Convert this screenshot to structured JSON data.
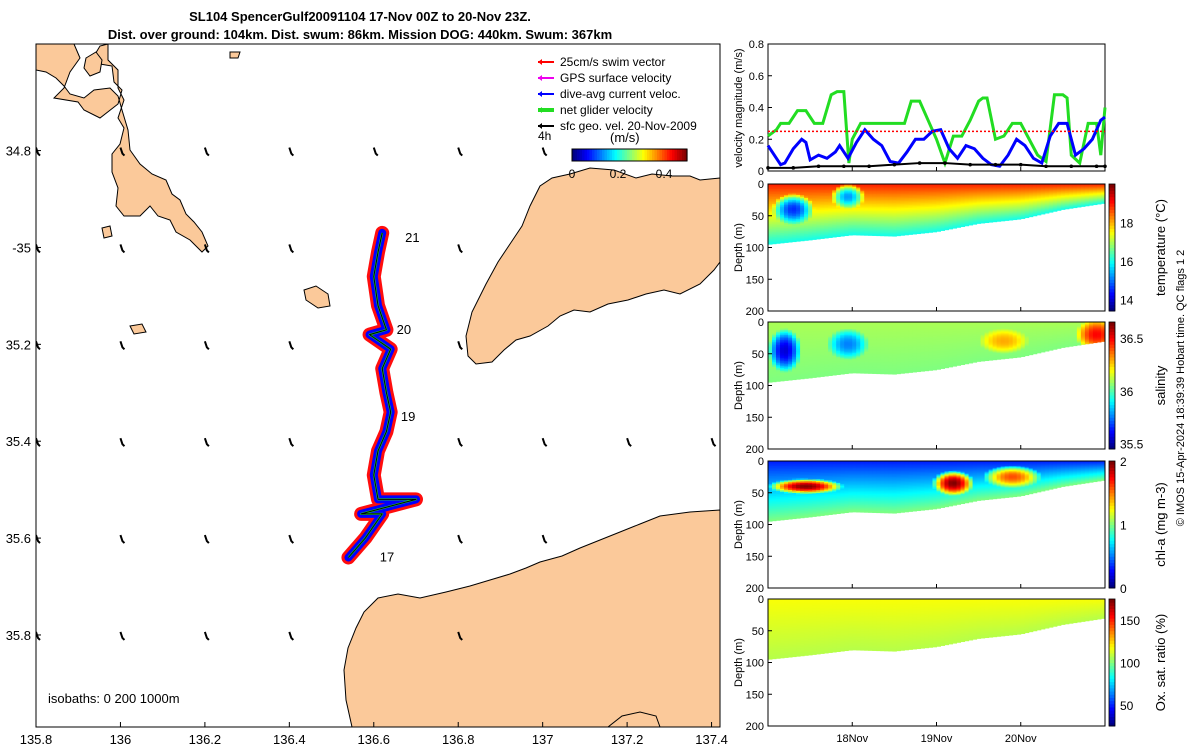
{
  "title": {
    "line1": "SL104 SpencerGulf20091104 17-Nov 00Z to 20-Nov 23Z.",
    "line2": "Dist. over ground: 104km. Dist. swum: 86km. Mission DOG: 440km. Swum: 367km"
  },
  "colors": {
    "land": "#fbc99a",
    "swim": "#ff0000",
    "gps": "#ee00ee",
    "dive": "#0000ff",
    "net": "#22dd22",
    "geo": "#000000"
  },
  "chart_data": [
    {
      "type": "map",
      "xlim": [
        135.8,
        137.42
      ],
      "ylim": [
        -35.99,
        -34.58
      ],
      "x_ticks": [
        135.8,
        136,
        136.2,
        136.4,
        136.6,
        136.8,
        137,
        137.2,
        137.4
      ],
      "x_tick_labels": [
        "135.8",
        "136",
        "136.2",
        "136.4",
        "136.6",
        "136.8",
        "137",
        "137.2",
        "137.4"
      ],
      "y_ticks": [
        -34.8,
        -35,
        -35.2,
        -35.4,
        -35.6,
        -35.8
      ],
      "y_tick_labels": [
        "34.8",
        "-35",
        "35.2",
        "35.4",
        "35.6",
        "35.8"
      ],
      "isobaths_label": "isobaths: 0   200  1000m",
      "legend": [
        {
          "label": "25cm/s swim vector",
          "color": "#ff0000"
        },
        {
          "label": "GPS surface velocity",
          "color": "#ee00ee"
        },
        {
          "label": "dive-avg current veloc.",
          "color": "#0000ff"
        },
        {
          "label": "net glider velocity",
          "color": "#22dd22"
        },
        {
          "label": "sfc geo. vel. 20-Nov-2009",
          "color": "#000000"
        }
      ],
      "legend_note": "4h",
      "colorbar": {
        "label": "(m/s)",
        "ticks": [
          0,
          0.2,
          0.4
        ],
        "tick_labels": [
          "0",
          "0.2",
          "0.4"
        ],
        "range": [
          0,
          0.5
        ]
      },
      "day_labels": [
        {
          "text": "21",
          "lon": 136.66,
          "lat": -34.98
        },
        {
          "text": "20",
          "lon": 136.64,
          "lat": -35.17
        },
        {
          "text": "19",
          "lon": 136.65,
          "lat": -35.35
        },
        {
          "text": "17",
          "lon": 136.6,
          "lat": -35.64
        }
      ],
      "track": [
        [
          136.54,
          -35.64
        ],
        [
          136.58,
          -35.6
        ],
        [
          136.62,
          -35.55
        ],
        [
          136.57,
          -35.55
        ],
        [
          136.7,
          -35.52
        ],
        [
          136.61,
          -35.52
        ],
        [
          136.6,
          -35.47
        ],
        [
          136.61,
          -35.42
        ],
        [
          136.63,
          -35.38
        ],
        [
          136.64,
          -35.34
        ],
        [
          136.63,
          -35.3
        ],
        [
          136.62,
          -35.25
        ],
        [
          136.64,
          -35.21
        ],
        [
          136.59,
          -35.18
        ],
        [
          136.63,
          -35.17
        ],
        [
          136.61,
          -35.12
        ],
        [
          136.6,
          -35.06
        ],
        [
          136.61,
          -35.01
        ],
        [
          136.62,
          -34.97
        ]
      ],
      "geo_vectors": [
        {
          "lon": 135.8,
          "lat": -34.8
        },
        {
          "lon": 136,
          "lat": -34.8
        },
        {
          "lon": 136.2,
          "lat": -34.8
        },
        {
          "lon": 136.4,
          "lat": -34.8
        },
        {
          "lon": 136.6,
          "lat": -34.8
        },
        {
          "lon": 136.8,
          "lat": -34.8
        },
        {
          "lon": 137,
          "lat": -34.8
        },
        {
          "lon": 135.8,
          "lat": -35
        },
        {
          "lon": 136,
          "lat": -35
        },
        {
          "lon": 136.2,
          "lat": -35
        },
        {
          "lon": 136.4,
          "lat": -35
        },
        {
          "lon": 136.8,
          "lat": -35
        },
        {
          "lon": 135.8,
          "lat": -35.2
        },
        {
          "lon": 136,
          "lat": -35.2
        },
        {
          "lon": 136.2,
          "lat": -35.2
        },
        {
          "lon": 136.4,
          "lat": -35.2
        },
        {
          "lon": 136.8,
          "lat": -35.2
        },
        {
          "lon": 135.8,
          "lat": -35.4
        },
        {
          "lon": 136,
          "lat": -35.4
        },
        {
          "lon": 136.2,
          "lat": -35.4
        },
        {
          "lon": 136.4,
          "lat": -35.4
        },
        {
          "lon": 136.8,
          "lat": -35.4
        },
        {
          "lon": 137,
          "lat": -35.4
        },
        {
          "lon": 137.2,
          "lat": -35.4
        },
        {
          "lon": 137.4,
          "lat": -35.4
        },
        {
          "lon": 135.8,
          "lat": -35.6
        },
        {
          "lon": 136,
          "lat": -35.6
        },
        {
          "lon": 136.2,
          "lat": -35.6
        },
        {
          "lon": 136.4,
          "lat": -35.6
        },
        {
          "lon": 136.8,
          "lat": -35.6
        },
        {
          "lon": 137,
          "lat": -35.6
        },
        {
          "lon": 135.8,
          "lat": -35.8
        },
        {
          "lon": 136,
          "lat": -35.8
        },
        {
          "lon": 136.2,
          "lat": -35.8
        },
        {
          "lon": 136.4,
          "lat": -35.8
        },
        {
          "lon": 136.8,
          "lat": -35.8
        }
      ]
    },
    {
      "type": "line",
      "ylabel": "velocity magnitude (m/s)",
      "ylim": [
        0,
        0.8
      ],
      "y_ticks": [
        0,
        0.2,
        0.4,
        0.6,
        0.8
      ],
      "y_tick_labels": [
        "0",
        "0.2",
        "0.4",
        "0.6",
        "0.8"
      ],
      "x_range_days": [
        17,
        21
      ],
      "series": [
        {
          "name": "net glider velocity",
          "color": "#22dd22",
          "x": [
            17.0,
            17.1,
            17.15,
            17.25,
            17.35,
            17.45,
            17.55,
            17.65,
            17.75,
            17.82,
            17.9,
            17.96,
            18.0,
            18.1,
            18.3,
            18.5,
            18.62,
            18.7,
            18.8,
            18.9,
            19.0,
            19.1,
            19.2,
            19.3,
            19.4,
            19.5,
            19.55,
            19.6,
            19.7,
            19.8,
            19.9,
            20.0,
            20.1,
            20.2,
            20.3,
            20.4,
            20.5,
            20.55,
            20.6,
            20.7,
            20.8,
            20.9,
            20.95,
            21.0
          ],
          "y": [
            0.22,
            0.26,
            0.3,
            0.3,
            0.38,
            0.38,
            0.3,
            0.3,
            0.48,
            0.5,
            0.5,
            0.05,
            0.2,
            0.3,
            0.3,
            0.3,
            0.3,
            0.44,
            0.44,
            0.32,
            0.2,
            0.05,
            0.22,
            0.22,
            0.32,
            0.44,
            0.46,
            0.46,
            0.2,
            0.22,
            0.3,
            0.3,
            0.2,
            0.1,
            0.06,
            0.48,
            0.48,
            0.46,
            0.1,
            0.05,
            0.3,
            0.3,
            0.1,
            0.4
          ]
        },
        {
          "name": "dive-avg current veloc.",
          "color": "#0000ff",
          "x": [
            17.0,
            17.05,
            17.15,
            17.2,
            17.3,
            17.4,
            17.45,
            17.5,
            17.6,
            17.7,
            17.8,
            17.85,
            17.95,
            18.05,
            18.15,
            18.25,
            18.35,
            18.45,
            18.55,
            18.65,
            18.75,
            18.85,
            18.95,
            19.05,
            19.15,
            19.25,
            19.35,
            19.45,
            19.55,
            19.65,
            19.75,
            19.85,
            19.95,
            20.05,
            20.15,
            20.25,
            20.35,
            20.45,
            20.55,
            20.65,
            20.75,
            20.85,
            20.95,
            21.0
          ],
          "y": [
            0.16,
            0.12,
            0.04,
            0.05,
            0.14,
            0.2,
            0.18,
            0.07,
            0.1,
            0.08,
            0.12,
            0.16,
            0.08,
            0.18,
            0.26,
            0.2,
            0.16,
            0.06,
            0.05,
            0.12,
            0.2,
            0.2,
            0.25,
            0.26,
            0.14,
            0.08,
            0.16,
            0.14,
            0.08,
            0.04,
            0.03,
            0.1,
            0.2,
            0.16,
            0.08,
            0.05,
            0.22,
            0.3,
            0.3,
            0.1,
            0.14,
            0.2,
            0.32,
            0.34
          ]
        },
        {
          "name": "25cm/s swim vector",
          "color": "#ff0000",
          "x": [
            17.0,
            21.0
          ],
          "y": [
            0.25,
            0.25
          ]
        },
        {
          "name": "sfc geo. vel.",
          "color": "#000000",
          "x": [
            17.0,
            17.3,
            17.6,
            17.9,
            18.2,
            18.5,
            18.8,
            19.1,
            19.4,
            19.7,
            20.0,
            20.3,
            20.6,
            20.9,
            21.0
          ],
          "y": [
            0.02,
            0.02,
            0.03,
            0.03,
            0.03,
            0.04,
            0.05,
            0.05,
            0.04,
            0.04,
            0.04,
            0.03,
            0.03,
            0.03,
            0.03
          ]
        }
      ]
    },
    {
      "type": "heatmap",
      "name": "temperature",
      "ylabel": "Depth (m)",
      "colorbar_label": "temperature (°C)",
      "ylim": [
        0,
        200
      ],
      "y_ticks": [
        0,
        50,
        100,
        150,
        200
      ],
      "y_tick_labels": [
        "0",
        "50",
        "100",
        "150",
        "200"
      ],
      "clim": [
        13.4,
        20
      ],
      "cbar_ticks": [
        14,
        16,
        18
      ],
      "cbar_tick_labels": [
        "14",
        "16",
        "18"
      ],
      "max_depth_days": [
        17.0,
        17.5,
        18.0,
        18.5,
        19.0,
        19.5,
        20.0,
        20.5,
        21.0
      ],
      "max_depth": [
        95,
        88,
        80,
        82,
        75,
        62,
        55,
        40,
        30
      ],
      "surface_value": 19,
      "deep_value": 16,
      "anomalies": [
        {
          "day": 17.3,
          "depth": 40,
          "value": 14.5,
          "radius_days": 0.25,
          "radius_depth": 25
        },
        {
          "day": 17.95,
          "depth": 20,
          "value": 15.2,
          "radius_days": 0.2,
          "radius_depth": 20
        }
      ]
    },
    {
      "type": "heatmap",
      "name": "salinity",
      "ylabel": "Depth (m)",
      "colorbar_label": "salinity",
      "ylim": [
        0,
        200
      ],
      "y_ticks": [
        0,
        50,
        100,
        150,
        200
      ],
      "y_tick_labels": [
        "0",
        "50",
        "100",
        "150",
        "200"
      ],
      "clim": [
        35.45,
        36.65
      ],
      "cbar_ticks": [
        35.5,
        36,
        36.5
      ],
      "cbar_tick_labels": [
        "35.5",
        "36",
        "36.5"
      ],
      "max_depth_days": [
        17.0,
        17.5,
        18.0,
        18.5,
        19.0,
        19.5,
        20.0,
        20.5,
        21.0
      ],
      "max_depth": [
        95,
        88,
        80,
        82,
        75,
        62,
        55,
        40,
        30
      ],
      "surface_value": 36.1,
      "deep_value": 36.05,
      "anomalies": [
        {
          "day": 17.2,
          "depth": 45,
          "value": 35.55,
          "radius_days": 0.2,
          "radius_depth": 35
        },
        {
          "day": 17.95,
          "depth": 35,
          "value": 35.75,
          "radius_days": 0.25,
          "radius_depth": 25
        },
        {
          "day": 20.9,
          "depth": 20,
          "value": 36.5,
          "radius_days": 0.25,
          "radius_depth": 25
        },
        {
          "day": 19.8,
          "depth": 30,
          "value": 36.3,
          "radius_days": 0.3,
          "radius_depth": 20
        }
      ]
    },
    {
      "type": "heatmap",
      "name": "chl-a",
      "ylabel": "Depth (m)",
      "colorbar_label": "chl-a (mg m-3)",
      "ylim": [
        0,
        200
      ],
      "y_ticks": [
        0,
        50,
        100,
        150,
        200
      ],
      "y_tick_labels": [
        "0",
        "50",
        "100",
        "150",
        "200"
      ],
      "clim": [
        0,
        2
      ],
      "cbar_ticks": [
        0,
        1,
        2
      ],
      "cbar_tick_labels": [
        "0",
        "1",
        "2"
      ],
      "max_depth_days": [
        17.0,
        17.5,
        18.0,
        18.5,
        19.0,
        19.5,
        20.0,
        20.5,
        21.0
      ],
      "max_depth": [
        95,
        88,
        80,
        82,
        75,
        62,
        55,
        40,
        30
      ],
      "surface_value": 0.3,
      "deep_value": 1.0,
      "anomalies": [
        {
          "day": 17.45,
          "depth": 40,
          "value": 2.0,
          "radius_days": 0.45,
          "radius_depth": 12
        },
        {
          "day": 19.2,
          "depth": 35,
          "value": 2.0,
          "radius_days": 0.25,
          "radius_depth": 20
        },
        {
          "day": 19.9,
          "depth": 25,
          "value": 1.6,
          "radius_days": 0.35,
          "radius_depth": 18
        }
      ]
    },
    {
      "type": "heatmap",
      "name": "oxygen",
      "ylabel": "Depth (m)",
      "colorbar_label": "Ox. sat. ratio (%)",
      "ylim": [
        0,
        200
      ],
      "y_ticks": [
        0,
        50,
        100,
        150,
        200
      ],
      "y_tick_labels": [
        "0",
        "50",
        "100",
        "150",
        "200"
      ],
      "clim": [
        25,
        175
      ],
      "cbar_ticks": [
        50,
        100,
        150
      ],
      "cbar_tick_labels": [
        "50",
        "100",
        "150"
      ],
      "max_depth_days": [
        17.0,
        17.5,
        18.0,
        18.5,
        19.0,
        19.5,
        20.0,
        20.5,
        21.0
      ],
      "max_depth": [
        95,
        88,
        80,
        82,
        75,
        62,
        55,
        40,
        30
      ],
      "surface_value": 118,
      "deep_value": 108,
      "anomalies": []
    }
  ],
  "time_axis": {
    "x_ticks": [
      18,
      19,
      20
    ],
    "x_tick_labels": [
      "18Nov",
      "19Nov",
      "20Nov"
    ]
  },
  "credit": "© IMOS 15-Apr-2024 18:39:39 Hobart time. QC flags 1  2"
}
